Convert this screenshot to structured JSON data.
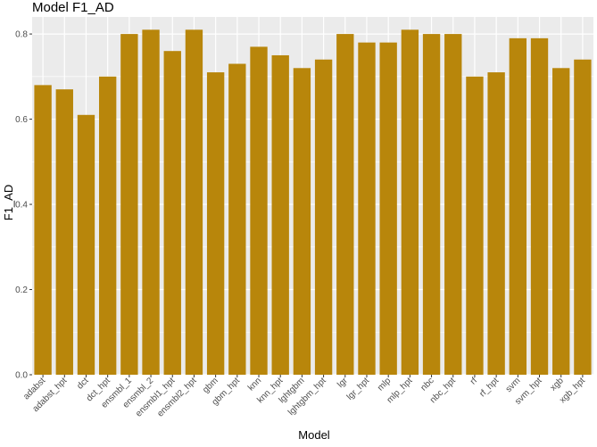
{
  "chart_data": {
    "type": "bar",
    "title": "Model F1_AD",
    "xlabel": "Model",
    "ylabel": "F1_AD",
    "ylim": [
      0,
      0.84
    ],
    "yticks": [
      0.0,
      0.2,
      0.4,
      0.6,
      0.8
    ],
    "ytick_labels": [
      "0.0",
      "0.2",
      "0.4",
      "0.6",
      "0.8"
    ],
    "grid": true,
    "bar_color": "#b8860b",
    "panel_background": "#ebebeb",
    "gridline_color": "#ffffff",
    "categories": [
      "adabst",
      "adabst_hpt",
      "dct",
      "dct_hpt",
      "ensmbl_1",
      "ensmbl_2",
      "ensmbl1_hpt",
      "ensmbl2_hpt",
      "gbm",
      "gbm_hpt",
      "knn",
      "knn_hpt",
      "lghtgbm",
      "lghtgbm_hpt",
      "lgr",
      "lgr_hpt",
      "mlp",
      "mlp_hpt",
      "nbc",
      "nbc_hpt",
      "rf",
      "rf_hpt",
      "svm",
      "svm_hpt",
      "xgb",
      "xgb_hpt"
    ],
    "values": [
      0.68,
      0.67,
      0.61,
      0.7,
      0.8,
      0.81,
      0.76,
      0.81,
      0.71,
      0.73,
      0.77,
      0.75,
      0.72,
      0.74,
      0.8,
      0.78,
      0.78,
      0.81,
      0.8,
      0.8,
      0.7,
      0.71,
      0.79,
      0.79,
      0.72,
      0.74
    ]
  }
}
